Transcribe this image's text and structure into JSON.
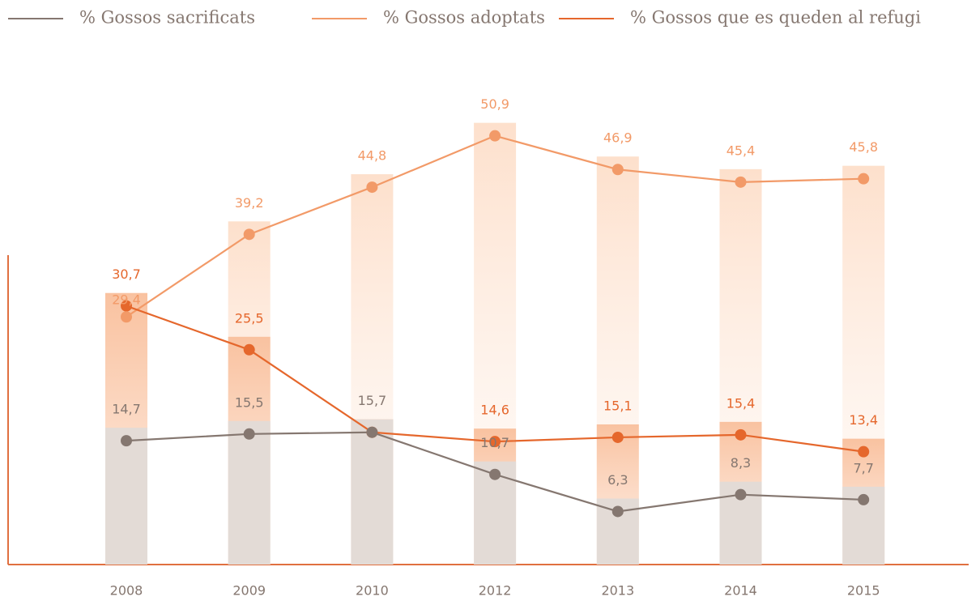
{
  "chart_data": {
    "type": "line",
    "categories": [
      "2008",
      "2009",
      "2010",
      "2012",
      "2013",
      "2014",
      "2015"
    ],
    "series": [
      {
        "name": "% Gossos sacrificats",
        "color": "#857770",
        "values": [
          14.7,
          15.5,
          15.7,
          10.7,
          6.3,
          8.3,
          7.7
        ],
        "value_labels": [
          "14,7",
          "15,5",
          "15,7",
          "10,7",
          "6,3",
          "8,3",
          "7,7"
        ]
      },
      {
        "name": "% Gossos adoptats",
        "color": "#f29a68",
        "values": [
          29.4,
          39.2,
          44.8,
          50.9,
          46.9,
          45.4,
          45.8
        ],
        "value_labels": [
          "29,4",
          "39,2",
          "44,8",
          "50,9",
          "46,9",
          "45,4",
          "45,8"
        ]
      },
      {
        "name": "% Gossos que es queden al refugi",
        "color": "#e5672c",
        "values": [
          30.7,
          25.5,
          15.7,
          14.6,
          15.1,
          15.4,
          13.4
        ],
        "value_labels": [
          "30,7",
          "25,5",
          null,
          "14,6",
          "15,1",
          "15,4",
          "13,4"
        ]
      }
    ],
    "ylim": [
      0,
      60
    ]
  }
}
